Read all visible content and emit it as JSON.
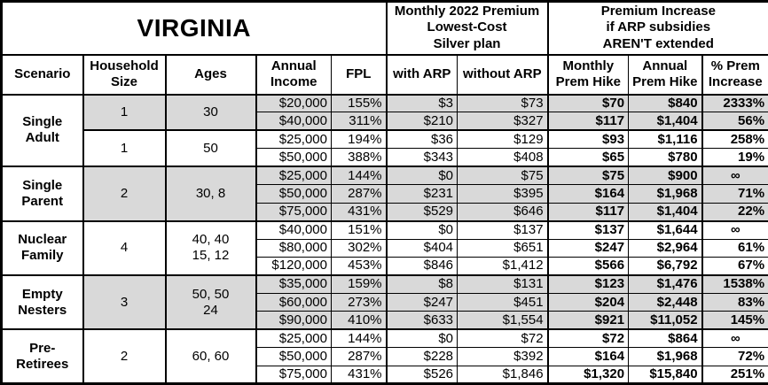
{
  "table": {
    "title": "VIRGINIA",
    "group_headers": {
      "premium": "Monthly 2022 Premium\nLowest-Cost\nSilver plan",
      "increase": "Premium Increase\nif ARP subsidies\nAREN'T extended"
    },
    "columns": [
      "Scenario",
      "Household\nSize",
      "Ages",
      "Annual\nIncome",
      "FPL",
      "with ARP",
      "without ARP",
      "Monthly\nPrem Hike",
      "Annual\nPrem Hike",
      "% Prem\nIncrease"
    ],
    "colors": {
      "shaded_row": "#d9d9d9",
      "border": "#000000",
      "background": "#ffffff"
    },
    "groups": [
      {
        "scenario": "Single\nAdult",
        "subgroups": [
          {
            "household_size": "1",
            "ages": "30",
            "shaded": true,
            "rows": [
              {
                "income": "$20,000",
                "fpl": "155%",
                "with_arp": "$3",
                "without_arp": "$73",
                "monthly_hike": "$70",
                "annual_hike": "$840",
                "pct_increase": "2333%"
              },
              {
                "income": "$40,000",
                "fpl": "311%",
                "with_arp": "$210",
                "without_arp": "$327",
                "monthly_hike": "$117",
                "annual_hike": "$1,404",
                "pct_increase": "56%"
              }
            ]
          },
          {
            "household_size": "1",
            "ages": "50",
            "shaded": false,
            "rows": [
              {
                "income": "$25,000",
                "fpl": "194%",
                "with_arp": "$36",
                "without_arp": "$129",
                "monthly_hike": "$93",
                "annual_hike": "$1,116",
                "pct_increase": "258%"
              },
              {
                "income": "$50,000",
                "fpl": "388%",
                "with_arp": "$343",
                "without_arp": "$408",
                "monthly_hike": "$65",
                "annual_hike": "$780",
                "pct_increase": "19%"
              }
            ]
          }
        ]
      },
      {
        "scenario": "Single\nParent",
        "subgroups": [
          {
            "household_size": "2",
            "ages": "30, 8",
            "shaded": true,
            "rows": [
              {
                "income": "$25,000",
                "fpl": "144%",
                "with_arp": "$0",
                "without_arp": "$75",
                "monthly_hike": "$75",
                "annual_hike": "$900",
                "pct_increase": "∞"
              },
              {
                "income": "$50,000",
                "fpl": "287%",
                "with_arp": "$231",
                "without_arp": "$395",
                "monthly_hike": "$164",
                "annual_hike": "$1,968",
                "pct_increase": "71%"
              },
              {
                "income": "$75,000",
                "fpl": "431%",
                "with_arp": "$529",
                "without_arp": "$646",
                "monthly_hike": "$117",
                "annual_hike": "$1,404",
                "pct_increase": "22%"
              }
            ]
          }
        ]
      },
      {
        "scenario": "Nuclear\nFamily",
        "subgroups": [
          {
            "household_size": "4",
            "ages": "40, 40\n15, 12",
            "shaded": false,
            "rows": [
              {
                "income": "$40,000",
                "fpl": "151%",
                "with_arp": "$0",
                "without_arp": "$137",
                "monthly_hike": "$137",
                "annual_hike": "$1,644",
                "pct_increase": "∞"
              },
              {
                "income": "$80,000",
                "fpl": "302%",
                "with_arp": "$404",
                "without_arp": "$651",
                "monthly_hike": "$247",
                "annual_hike": "$2,964",
                "pct_increase": "61%"
              },
              {
                "income": "$120,000",
                "fpl": "453%",
                "with_arp": "$846",
                "without_arp": "$1,412",
                "monthly_hike": "$566",
                "annual_hike": "$6,792",
                "pct_increase": "67%"
              }
            ]
          }
        ]
      },
      {
        "scenario": "Empty\nNesters",
        "subgroups": [
          {
            "household_size": "3",
            "ages": "50, 50\n24",
            "shaded": true,
            "rows": [
              {
                "income": "$35,000",
                "fpl": "159%",
                "with_arp": "$8",
                "without_arp": "$131",
                "monthly_hike": "$123",
                "annual_hike": "$1,476",
                "pct_increase": "1538%"
              },
              {
                "income": "$60,000",
                "fpl": "273%",
                "with_arp": "$247",
                "without_arp": "$451",
                "monthly_hike": "$204",
                "annual_hike": "$2,448",
                "pct_increase": "83%"
              },
              {
                "income": "$90,000",
                "fpl": "410%",
                "with_arp": "$633",
                "without_arp": "$1,554",
                "monthly_hike": "$921",
                "annual_hike": "$11,052",
                "pct_increase": "145%"
              }
            ]
          }
        ]
      },
      {
        "scenario": "Pre-\nRetirees",
        "subgroups": [
          {
            "household_size": "2",
            "ages": "60, 60",
            "shaded": false,
            "rows": [
              {
                "income": "$25,000",
                "fpl": "144%",
                "with_arp": "$0",
                "without_arp": "$72",
                "monthly_hike": "$72",
                "annual_hike": "$864",
                "pct_increase": "∞"
              },
              {
                "income": "$50,000",
                "fpl": "287%",
                "with_arp": "$228",
                "without_arp": "$392",
                "monthly_hike": "$164",
                "annual_hike": "$1,968",
                "pct_increase": "72%"
              },
              {
                "income": "$75,000",
                "fpl": "431%",
                "with_arp": "$526",
                "without_arp": "$1,846",
                "monthly_hike": "$1,320",
                "annual_hike": "$15,840",
                "pct_increase": "251%"
              }
            ]
          }
        ]
      }
    ]
  }
}
